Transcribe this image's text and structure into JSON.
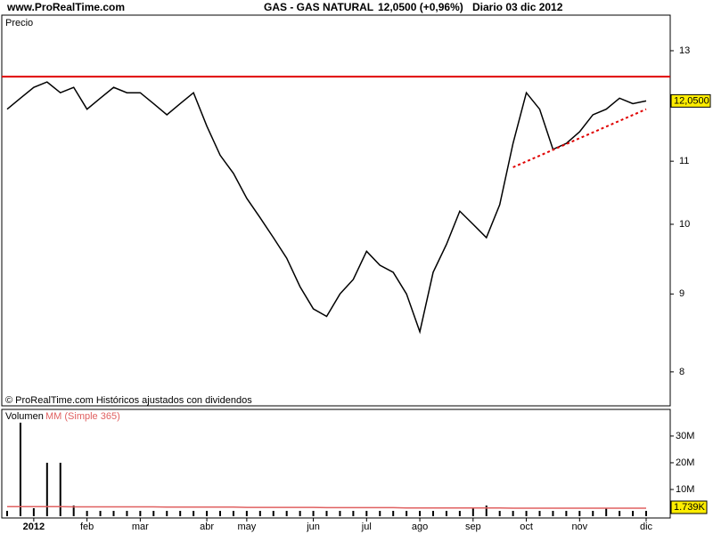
{
  "header": {
    "site": "www.ProRealTime.com",
    "instrument": "GAS - GAS NATURAL",
    "quote": "12,0500 (+0,96%)",
    "period": "Diario  03 dic 2012"
  },
  "chart_data": [
    {
      "type": "line",
      "label": "Precio",
      "note": "© ProRealTime.com Históricos ajustados con dividendos",
      "log_scale": true,
      "ylim": [
        7.61,
        13.7
      ],
      "yticks": [
        8,
        9,
        10,
        11,
        12,
        13
      ],
      "last_value_label": "12,0500",
      "categories": [
        null,
        null,
        "2012",
        null,
        null,
        null,
        "feb",
        null,
        null,
        null,
        "mar",
        null,
        null,
        null,
        null,
        "abr",
        null,
        null,
        "may",
        null,
        null,
        null,
        null,
        "jun",
        null,
        null,
        null,
        "jul",
        null,
        null,
        null,
        "ago",
        null,
        null,
        null,
        "sep",
        null,
        null,
        null,
        "oct",
        null,
        null,
        null,
        "nov",
        null,
        null,
        null,
        null,
        "dic"
      ],
      "series": [
        {
          "name": "GAS",
          "color": "#000000",
          "values": [
            11.9,
            12.1,
            12.3,
            12.4,
            12.2,
            12.3,
            11.9,
            12.1,
            12.3,
            12.2,
            12.2,
            12.0,
            11.8,
            12.0,
            12.2,
            11.6,
            11.1,
            10.8,
            10.4,
            10.1,
            9.8,
            9.5,
            9.1,
            8.8,
            8.7,
            9.0,
            9.2,
            9.6,
            9.4,
            9.3,
            9.0,
            8.5,
            9.3,
            9.7,
            10.2,
            10.0,
            9.8,
            10.3,
            11.3,
            12.2,
            11.9,
            11.2,
            11.3,
            11.5,
            11.8,
            11.9,
            12.1,
            12.0,
            12.05
          ]
        }
      ],
      "resistance": {
        "color": "#e00000",
        "value": 12.5
      },
      "trendline": {
        "color": "#e00000",
        "start_index": 38,
        "end_index": 48,
        "values": [
          10.9,
          11.9
        ]
      }
    },
    {
      "type": "bar",
      "label": "Volumen",
      "ylim": [
        0,
        39.3
      ],
      "yticks": [
        {
          "value": 10,
          "label": "10M"
        },
        {
          "value": 20,
          "label": "20M"
        },
        {
          "value": 30,
          "label": "30M"
        }
      ],
      "last_value_label": "1.739K",
      "series": [
        {
          "name": "Volumen",
          "color": "#000000",
          "values": [
            2,
            35,
            3,
            20,
            20,
            4,
            2,
            2,
            2,
            2,
            2,
            2,
            2,
            2,
            2,
            2,
            2,
            2,
            2,
            2,
            2,
            2,
            2,
            2,
            2,
            2,
            2,
            2,
            2,
            2,
            2,
            2,
            2,
            2,
            2,
            3,
            4,
            2,
            2,
            2,
            2,
            2,
            2,
            2,
            2,
            3,
            2,
            2,
            2
          ]
        },
        {
          "name": "MM (Simple 365)",
          "color": "#e06060",
          "values": [
            3.6,
            3.6,
            3.6,
            3.6,
            3.6,
            3.5,
            3.5,
            3.5,
            3.5,
            3.5,
            3.5,
            3.5,
            3.4,
            3.4,
            3.4,
            3.4,
            3.4,
            3.4,
            3.3,
            3.3,
            3.3,
            3.3,
            3.3,
            3.3,
            3.2,
            3.2,
            3.2,
            3.2,
            3.2,
            3.2,
            3.1,
            3.1,
            3.1,
            3.1,
            3.1,
            3.1,
            3.1,
            3.1,
            3.0,
            3.0,
            3.0,
            3.0,
            3.0,
            3.0,
            3.0,
            3.0,
            3.0,
            3.0,
            3.0
          ]
        }
      ]
    }
  ]
}
